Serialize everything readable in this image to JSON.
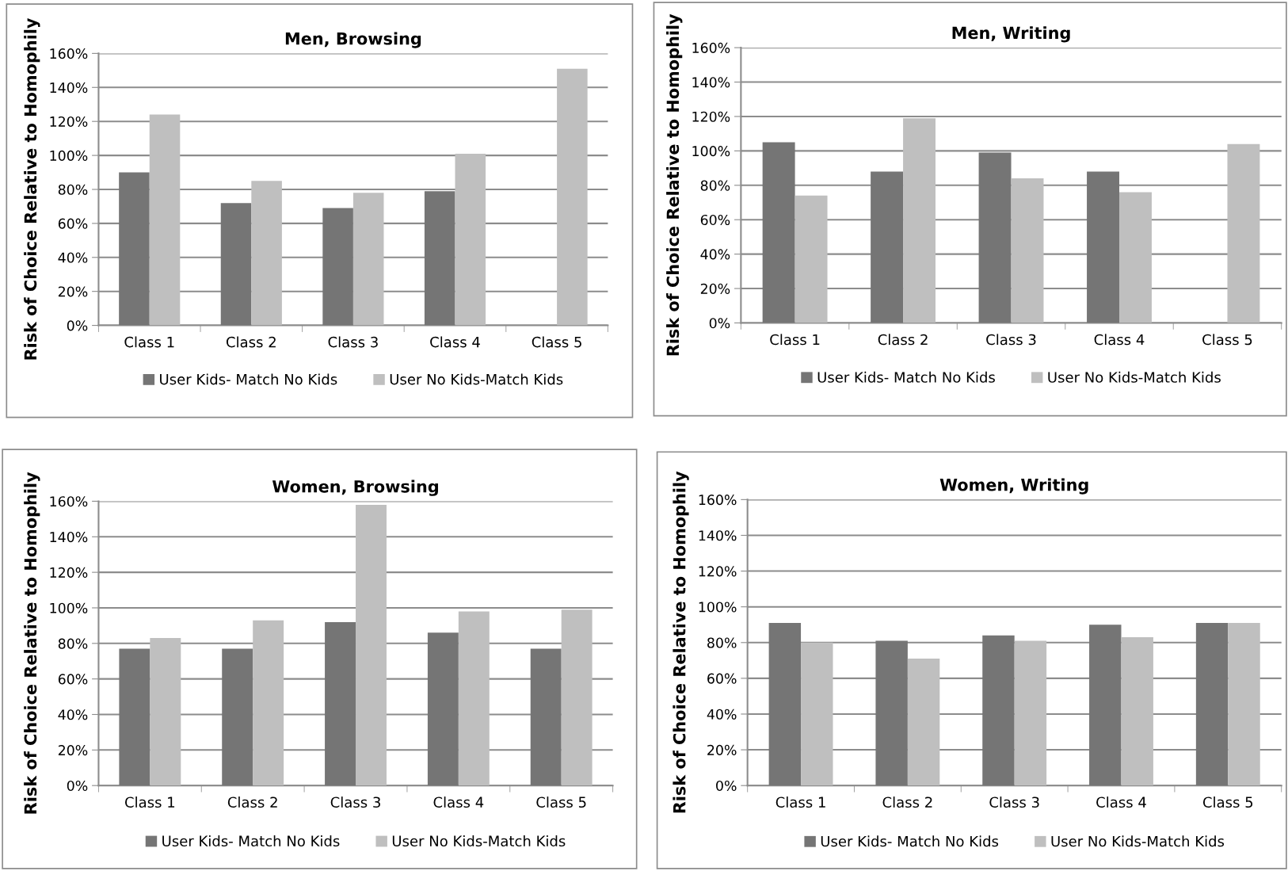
{
  "chart_data": [
    {
      "type": "bar",
      "title": "Men, Browsing",
      "ylabel": "Risk of Choice Relative to Homophily",
      "categories": [
        "Class 1",
        "Class 2",
        "Class 3",
        "Class 4",
        "Class 5"
      ],
      "series": [
        {
          "name": "User Kids- Match No Kids",
          "color": "#757575",
          "values": [
            90,
            72,
            69,
            79,
            null
          ]
        },
        {
          "name": "User No Kids-Match Kids",
          "color": "#bfbfbf",
          "values": [
            124,
            85,
            78,
            101,
            151
          ]
        }
      ],
      "ylim": [
        0,
        160
      ],
      "yticks": [
        {
          "value": 0,
          "label": "0%"
        },
        {
          "value": 20,
          "label": "20%"
        },
        {
          "value": 40,
          "label": "40%"
        },
        {
          "value": 60,
          "label": "60%"
        },
        {
          "value": 80,
          "label": "80%"
        },
        {
          "value": 100,
          "label": "100%"
        },
        {
          "value": 120,
          "label": "120%"
        },
        {
          "value": 140,
          "label": "140%"
        },
        {
          "value": 160,
          "label": "160%"
        }
      ],
      "grid": "y",
      "legend": "bottom"
    },
    {
      "type": "bar",
      "title": "Men, Writing",
      "ylabel": "Risk of Choice Relative to Homophily",
      "categories": [
        "Class 1",
        "Class 2",
        "Class 3",
        "Class 4",
        "Class 5"
      ],
      "series": [
        {
          "name": "User Kids- Match No Kids",
          "color": "#757575",
          "values": [
            105,
            88,
            99,
            88,
            null
          ]
        },
        {
          "name": "User No Kids-Match Kids",
          "color": "#bfbfbf",
          "values": [
            74,
            119,
            84,
            76,
            104
          ]
        }
      ],
      "ylim": [
        0,
        160
      ],
      "yticks": [
        {
          "value": 0,
          "label": "0%"
        },
        {
          "value": 20,
          "label": "20%"
        },
        {
          "value": 40,
          "label": "40%"
        },
        {
          "value": 60,
          "label": "60%"
        },
        {
          "value": 80,
          "label": "80%"
        },
        {
          "value": 100,
          "label": "100%"
        },
        {
          "value": 120,
          "label": "120%"
        },
        {
          "value": 140,
          "label": "140%"
        },
        {
          "value": 160,
          "label": "160%"
        }
      ],
      "grid": "y",
      "legend": "bottom"
    },
    {
      "type": "bar",
      "title": "Women, Browsing",
      "ylabel": "Risk of Choice Relative to Homophily",
      "categories": [
        "Class 1",
        "Class 2",
        "Class 3",
        "Class 4",
        "Class 5"
      ],
      "series": [
        {
          "name": "User Kids- Match No Kids",
          "color": "#757575",
          "values": [
            77,
            77,
            92,
            86,
            77
          ]
        },
        {
          "name": "User No Kids-Match Kids",
          "color": "#bfbfbf",
          "values": [
            83,
            93,
            158,
            98,
            99
          ]
        }
      ],
      "ylim": [
        0,
        160
      ],
      "yticks": [
        {
          "value": 0,
          "label": "0%"
        },
        {
          "value": 20,
          "label": "20%"
        },
        {
          "value": 40,
          "label": "40%"
        },
        {
          "value": 60,
          "label": "60%"
        },
        {
          "value": 80,
          "label": "80%"
        },
        {
          "value": 100,
          "label": "100%"
        },
        {
          "value": 120,
          "label": "120%"
        },
        {
          "value": 140,
          "label": "140%"
        },
        {
          "value": 160,
          "label": "160%"
        }
      ],
      "grid": "y",
      "legend": "bottom"
    },
    {
      "type": "bar",
      "title": "Women, Writing",
      "ylabel": "Risk of Choice Relative to Homophily",
      "categories": [
        "Class 1",
        "Class 2",
        "Class 3",
        "Class 4",
        "Class 5"
      ],
      "series": [
        {
          "name": "User Kids- Match No Kids",
          "color": "#757575",
          "values": [
            91,
            81,
            84,
            90,
            91
          ]
        },
        {
          "name": "User No Kids-Match Kids",
          "color": "#bfbfbf",
          "values": [
            80,
            71,
            81,
            83,
            91
          ]
        }
      ],
      "ylim": [
        0,
        160
      ],
      "yticks": [
        {
          "value": 0,
          "label": "0%"
        },
        {
          "value": 20,
          "label": "20%"
        },
        {
          "value": 40,
          "label": "40%"
        },
        {
          "value": 60,
          "label": "60%"
        },
        {
          "value": 80,
          "label": "80%"
        },
        {
          "value": 100,
          "label": "100%"
        },
        {
          "value": 120,
          "label": "120%"
        },
        {
          "value": 140,
          "label": "140%"
        },
        {
          "value": 160,
          "label": "160%"
        }
      ],
      "grid": "y",
      "legend": "bottom"
    }
  ]
}
